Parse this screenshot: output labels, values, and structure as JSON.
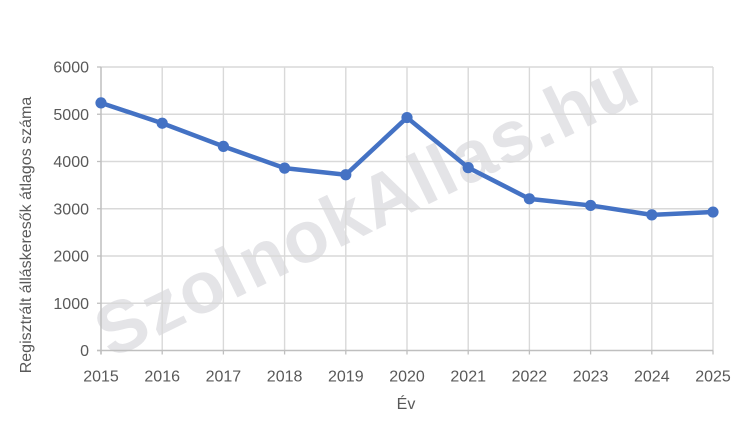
{
  "watermark": {
    "text": "SzolnokAllas.hu"
  },
  "chart_data": {
    "type": "line",
    "title": "",
    "categories": [
      "2015",
      "2016",
      "2017",
      "2018",
      "2019",
      "2020",
      "2021",
      "2022",
      "2023",
      "2024",
      "2025"
    ],
    "values": [
      5240,
      4810,
      4320,
      3860,
      3720,
      4930,
      3870,
      3210,
      3070,
      2870,
      2930
    ],
    "xlabel": "Év",
    "ylabel": "Regisztrált álláskeresők átlagos száma",
    "ylim": [
      0,
      6000
    ],
    "ytick_step": 1000,
    "yticks": [
      "0",
      "1000",
      "2000",
      "3000",
      "4000",
      "5000",
      "6000"
    ],
    "grid": true,
    "legend": false
  },
  "colors": {
    "line": "#4472C4",
    "marker": "#4472C4",
    "gridline": "#D9D9D9",
    "axis_line": "#BFBFBF",
    "tick_label": "#595959",
    "axis_title": "#595959",
    "watermark": "#E4E4E7"
  }
}
